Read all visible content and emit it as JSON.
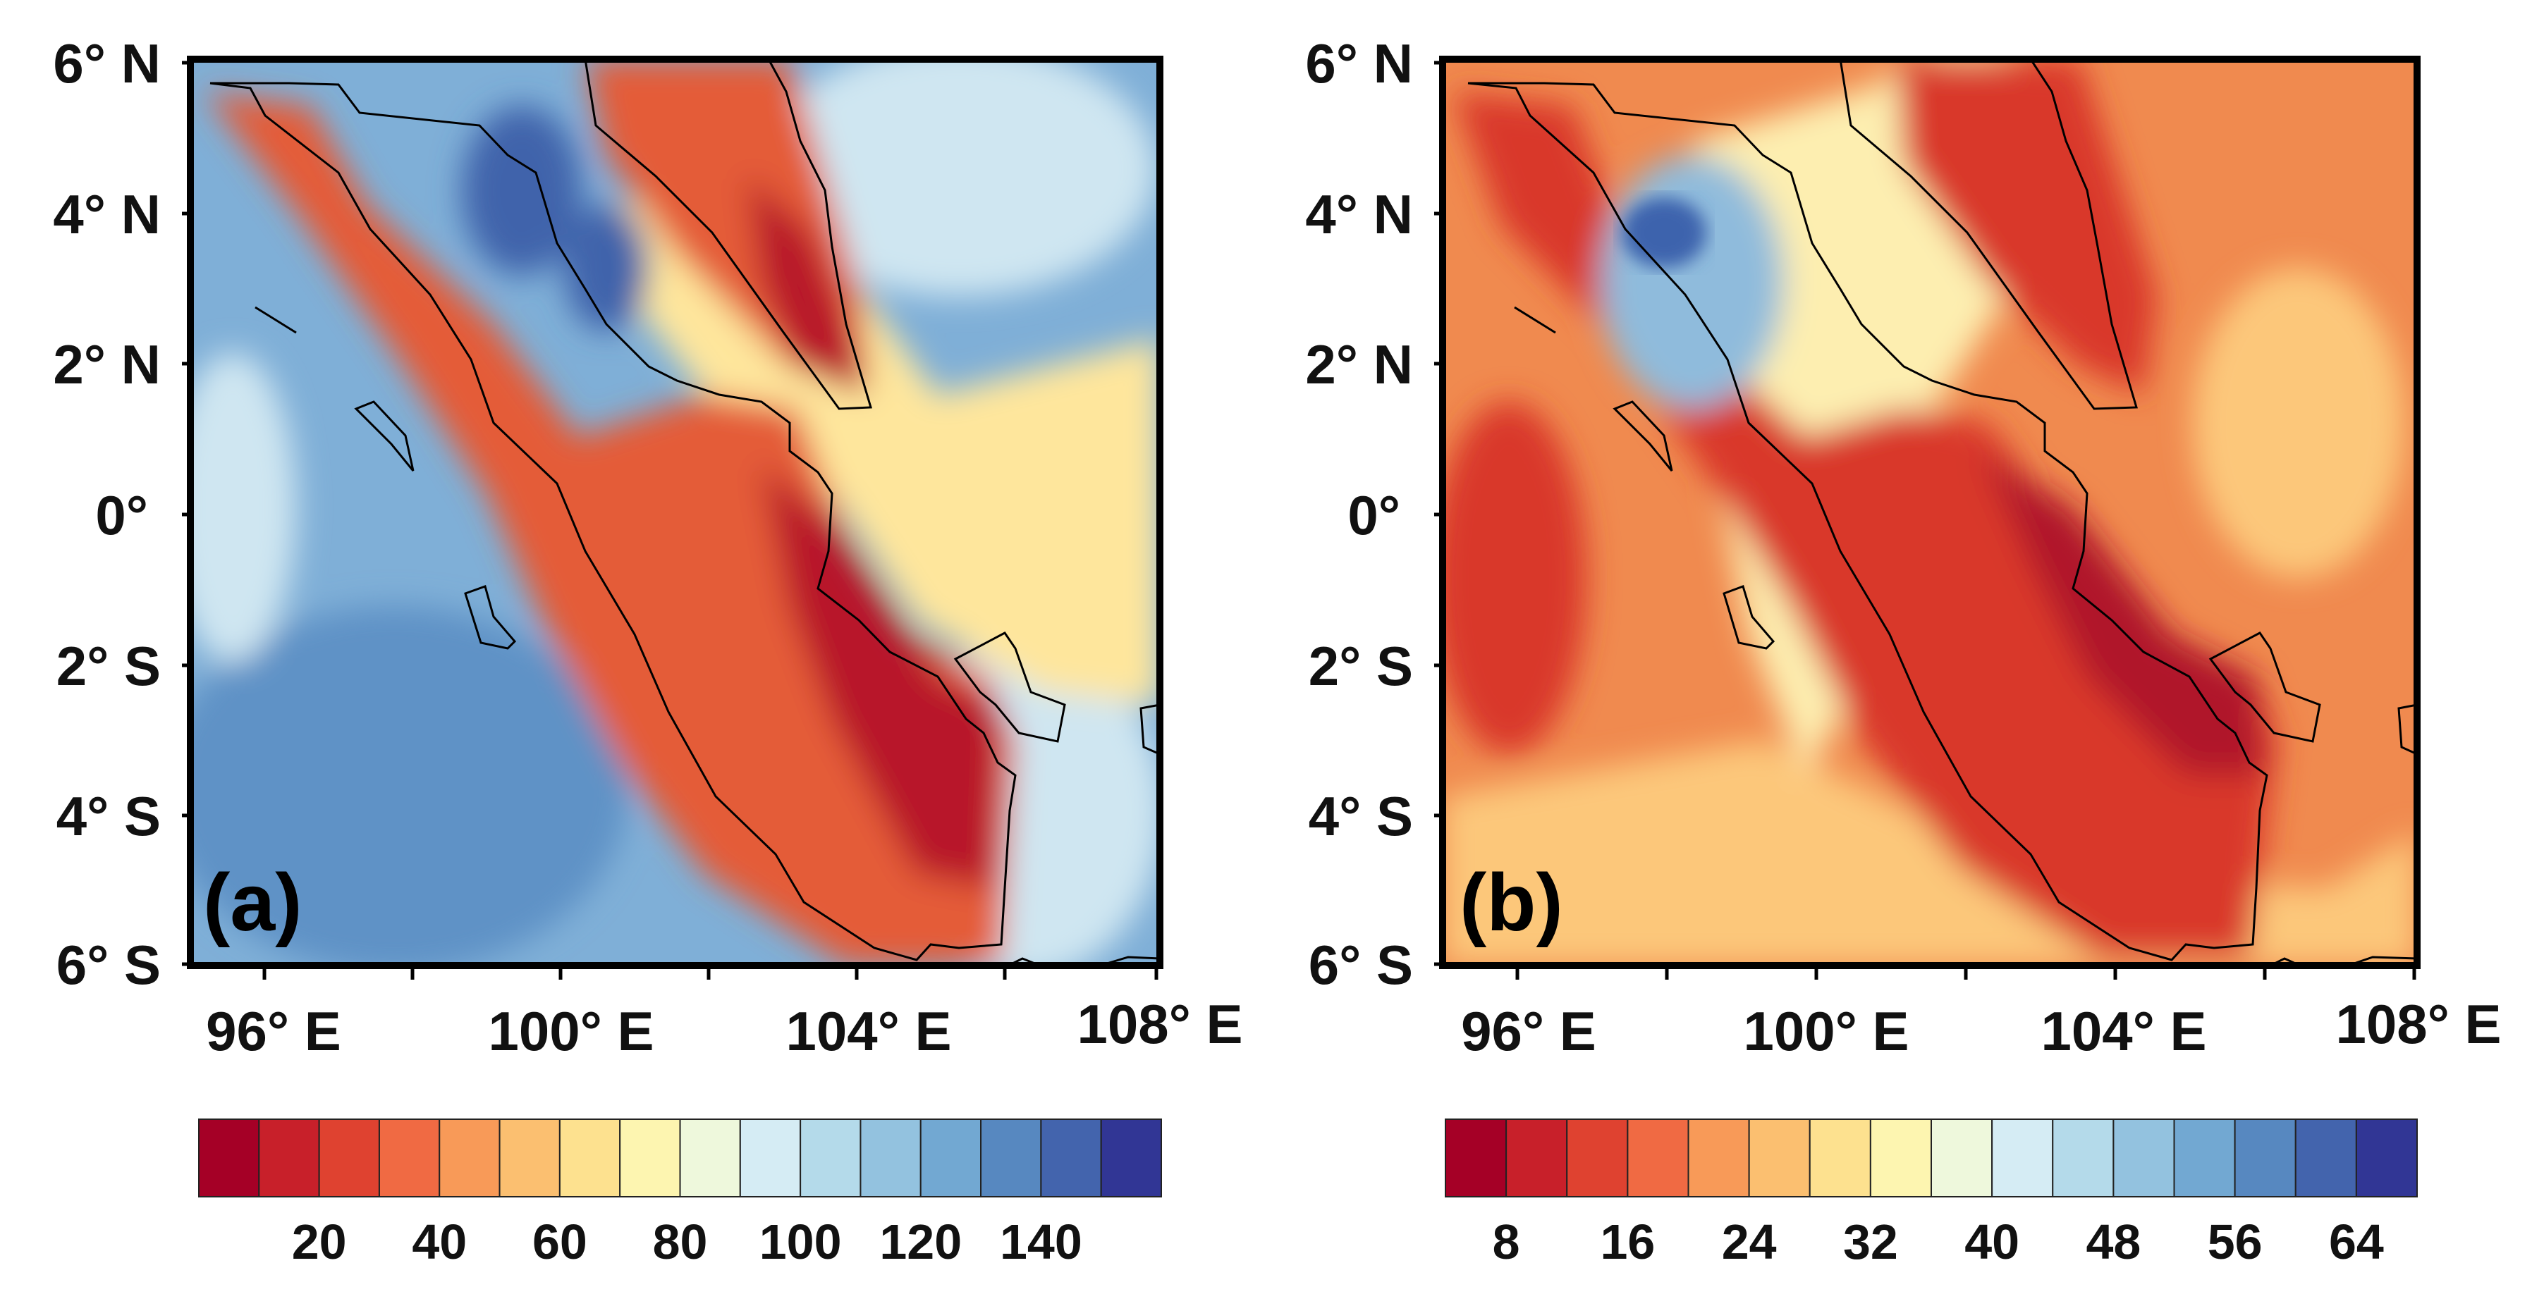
{
  "panels": [
    {
      "id": "a",
      "label": "(a)",
      "lat_ticks": [
        "6° N",
        "4° N",
        "2° N",
        "0°",
        "2° S",
        "4° S",
        "6° S"
      ],
      "lon_ticks": [
        "96° E",
        "100° E",
        "104° E",
        "108° E"
      ],
      "extent": {
        "lon": [
          95,
          108
        ],
        "lat": [
          -6,
          6
        ]
      },
      "colorbar": {
        "colors": [
          "#a50026",
          "#c8202a",
          "#df4230",
          "#f06a43",
          "#f89a58",
          "#fbbf70",
          "#fde18f",
          "#fdf5b0",
          "#eef8dc",
          "#d5ecf4",
          "#b4daea",
          "#93c2df",
          "#72a8d2",
          "#5788c0",
          "#4364ad",
          "#313695"
        ],
        "tick_labels": [
          "20",
          "40",
          "60",
          "80",
          "100",
          "120",
          "140"
        ],
        "min": 0,
        "max": 160,
        "step": 10
      }
    },
    {
      "id": "b",
      "label": "(b)",
      "lat_ticks": [
        "6° N",
        "4° N",
        "2° N",
        "0°",
        "2° S",
        "4° S",
        "6° S"
      ],
      "lon_ticks": [
        "96° E",
        "100° E",
        "104° E",
        "108° E"
      ],
      "extent": {
        "lon": [
          95,
          108
        ],
        "lat": [
          -6,
          6
        ]
      },
      "colorbar": {
        "colors": [
          "#a50026",
          "#c8202a",
          "#df4230",
          "#f06a43",
          "#f89a58",
          "#fbbf70",
          "#fde18f",
          "#fdf5b0",
          "#eef8dc",
          "#d5ecf4",
          "#b4daea",
          "#93c2df",
          "#72a8d2",
          "#5788c0",
          "#4364ad",
          "#313695"
        ],
        "tick_labels": [
          "8",
          "16",
          "24",
          "32",
          "40",
          "48",
          "56",
          "64"
        ],
        "min": 4,
        "max": 68,
        "step": 4
      }
    }
  ],
  "map_colors": {
    "ocean_a": "#7fafd7",
    "ocean_a_deep": "#5e92c6",
    "ocean_a_light": "#cfe6f1",
    "land_a": "#e45b38",
    "land_a_core": "#b8172a",
    "strait_a": "#fee69c",
    "highland_a": "#3f64ab",
    "ocean_b": "#f08a4f",
    "ocean_b_light": "#fcc77a",
    "land_b": "#d9392c",
    "land_b_core": "#b0162a",
    "strait_b": "#fdeeb0",
    "highland_b": "#8fbbdc",
    "highland_b_core": "#3e64ad",
    "coastline": "#000000"
  }
}
